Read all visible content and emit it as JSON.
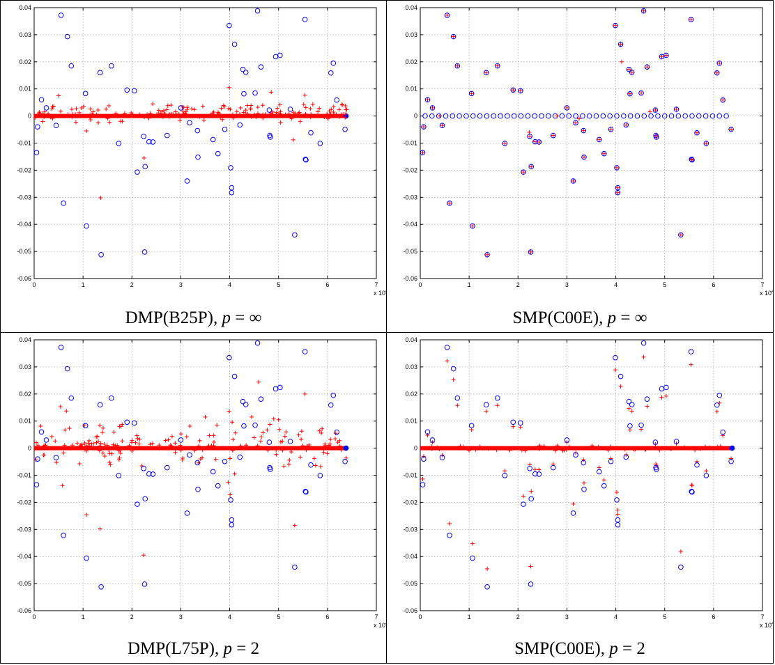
{
  "panels": [
    {
      "id": "p1",
      "name": "DMP(B25P)",
      "p_symbol": "p",
      "op": "=",
      "p_value": "∞",
      "red_style": "dmp-inf"
    },
    {
      "id": "p2",
      "name": "SMP(C00E)",
      "p_symbol": "p",
      "op": "=",
      "p_value": "∞",
      "red_style": "smp-inf"
    },
    {
      "id": "p3",
      "name": "DMP(L75P)",
      "p_symbol": "p",
      "op": "=",
      "p_value": "2",
      "red_style": "dmp-2"
    },
    {
      "id": "p4",
      "name": "SMP(C00E)",
      "p_symbol": "p",
      "op": "=",
      "p_value": "2",
      "red_style": "smp-2"
    }
  ],
  "colors": {
    "circles": "#0000ff",
    "plus": "#ff0000",
    "grid": "#a6a6a6"
  },
  "chart_data": {
    "type": "scatter",
    "xlim": [
      0,
      70000
    ],
    "ylim": [
      -0.06,
      0.04
    ],
    "x_ticks": [
      "0",
      "1",
      "2",
      "3",
      "4",
      "5",
      "6",
      "7"
    ],
    "x_multiplier": "x 10",
    "x_multiplier_exp": "4",
    "y_ticks": [
      "0.04",
      "0.03",
      "0.02",
      "0.01",
      "0",
      "-0.01",
      "-0.02",
      "-0.03",
      "-0.04",
      "-0.05",
      "-0.06"
    ],
    "grid": true,
    "circle_points": [
      [
        500,
        -0.0135
      ],
      [
        700,
        -0.004
      ],
      [
        1500,
        0.006
      ],
      [
        2500,
        0.003
      ],
      [
        4500,
        -0.0035
      ],
      [
        5500,
        0.0372
      ],
      [
        6000,
        -0.0322
      ],
      [
        6800,
        0.0293
      ],
      [
        7600,
        0.0185
      ],
      [
        10500,
        0.0083
      ],
      [
        10700,
        -0.0406
      ],
      [
        13500,
        0.016
      ],
      [
        13700,
        -0.0512
      ],
      [
        15800,
        0.0185
      ],
      [
        17300,
        -0.0101
      ],
      [
        19000,
        0.0096
      ],
      [
        20500,
        0.0093
      ],
      [
        21100,
        -0.0207
      ],
      [
        22400,
        -0.0075
      ],
      [
        22600,
        -0.0502
      ],
      [
        22700,
        -0.0187
      ],
      [
        23500,
        -0.0095
      ],
      [
        24300,
        -0.0096
      ],
      [
        27200,
        -0.0072
      ],
      [
        30000,
        0.003
      ],
      [
        31300,
        -0.024
      ],
      [
        31800,
        -0.0025
      ],
      [
        33400,
        -0.0054
      ],
      [
        33500,
        -0.0152
      ],
      [
        36600,
        -0.0087
      ],
      [
        37600,
        -0.0139
      ],
      [
        39000,
        -0.0049
      ],
      [
        39900,
        0.0334
      ],
      [
        40200,
        -0.0191
      ],
      [
        40400,
        -0.0265
      ],
      [
        40400,
        -0.0283
      ],
      [
        41000,
        0.0265
      ],
      [
        42100,
        -0.0033
      ],
      [
        42700,
        0.0172
      ],
      [
        42900,
        0.0082
      ],
      [
        43300,
        0.0161
      ],
      [
        45200,
        0.0085
      ],
      [
        45700,
        0.0388
      ],
      [
        46400,
        0.0181
      ],
      [
        48100,
        0.0022
      ],
      [
        48200,
        -0.0072
      ],
      [
        48300,
        -0.0078
      ],
      [
        49400,
        0.0219
      ],
      [
        50300,
        0.0224
      ],
      [
        52400,
        0.0025
      ],
      [
        53300,
        -0.0439
      ],
      [
        55400,
        0.0356
      ],
      [
        55500,
        -0.016
      ],
      [
        55600,
        -0.0162
      ],
      [
        56600,
        -0.0062
      ],
      [
        58500,
        -0.0101
      ],
      [
        60700,
        0.0159
      ],
      [
        61200,
        0.0195
      ],
      [
        61900,
        0.0059
      ],
      [
        63600,
        -0.0049
      ]
    ]
  }
}
